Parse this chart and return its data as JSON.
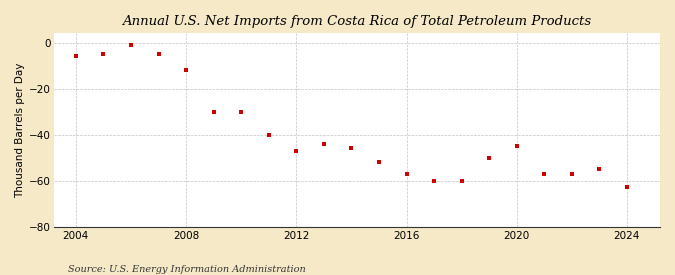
{
  "title": "Annual U.S. Net Imports from Costa Rica of Total Petroleum Products",
  "ylabel": "Thousand Barrels per Day",
  "source": "Source: U.S. Energy Information Administration",
  "years": [
    2004,
    2005,
    2006,
    2007,
    2008,
    2009,
    2010,
    2011,
    2012,
    2013,
    2014,
    2015,
    2016,
    2017,
    2018,
    2019,
    2020,
    2021,
    2022,
    2023,
    2024
  ],
  "values": [
    -6,
    -5,
    -1,
    -5,
    -12,
    -30,
    -30,
    -40,
    -47,
    -44,
    -46,
    -52,
    -57,
    -60,
    -60,
    -50,
    -45,
    -57,
    -57,
    -55,
    -63
  ],
  "marker_color": "#cc0000",
  "background_color": "#f5e9c8",
  "plot_bg_color": "#ffffff",
  "grid_color": "#aaaaaa",
  "ylim": [
    -80,
    4
  ],
  "xlim": [
    2003.2,
    2025.2
  ],
  "yticks": [
    0,
    -20,
    -40,
    -60,
    -80
  ],
  "xticks": [
    2004,
    2008,
    2012,
    2016,
    2020,
    2024
  ],
  "title_fontsize": 9.5,
  "label_fontsize": 7.5,
  "tick_fontsize": 7.5,
  "source_fontsize": 7.0
}
